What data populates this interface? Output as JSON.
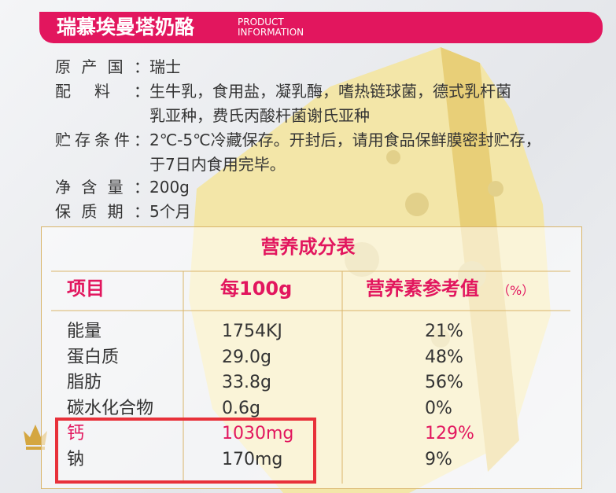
{
  "header": {
    "title": "瑞慕埃曼塔奶酪",
    "subtitle_lines": [
      "PRODUCT",
      "INFORMATION"
    ]
  },
  "info": [
    {
      "label": "原产国：",
      "lines": [
        "瑞士"
      ]
    },
    {
      "label": "配料：",
      "lines": [
        "生牛乳，食用盐，凝乳酶，嗜热链球菌，德式乳杆菌",
        "乳亚种，费氏丙酸杆菌谢氏亚种"
      ]
    },
    {
      "label": "贮存条件：",
      "lines": [
        "2℃-5℃冷藏保存。开封后，请用食品保鲜膜密封贮存，",
        "于7日内食用完毕。"
      ]
    },
    {
      "label": "净含量：",
      "lines": [
        "200g"
      ]
    },
    {
      "label": "保质期：",
      "lines": [
        "5个月"
      ]
    }
  ],
  "table": {
    "title": "营养成分表",
    "headers": [
      "项目",
      "每100g",
      "营养素参考值"
    ],
    "unit": "（%）",
    "rows": [
      [
        "能量",
        "1754KJ",
        "21%"
      ],
      [
        "蛋白质",
        "29.0g",
        "48%"
      ],
      [
        "脂肪",
        "33.8g",
        "56%"
      ],
      [
        "碳水化合物",
        "0.6g",
        "0%"
      ],
      [
        "钙",
        "1030mg",
        "129%"
      ],
      [
        "钠",
        "170mg",
        "9%"
      ]
    ],
    "highlight_rows": [
      4
    ]
  }
}
